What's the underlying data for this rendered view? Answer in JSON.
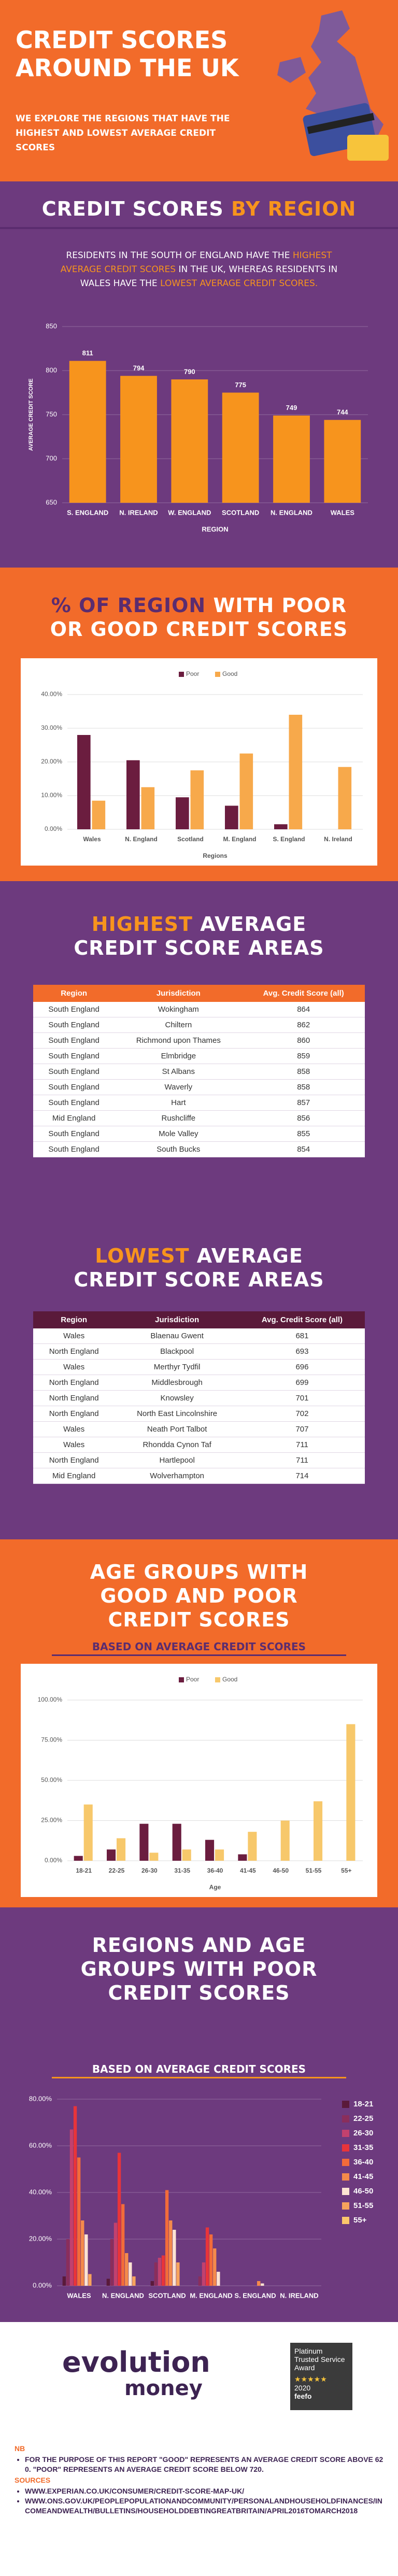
{
  "header": {
    "title": [
      "CREDIT SCORES",
      "AROUND THE UK"
    ],
    "subtitle": "WE EXPLORE THE REGIONS THAT HAVE THE HIGHEST AND LOWEST AVERAGE CREDIT SCORES"
  },
  "chart_data": [
    {
      "type": "bar",
      "title": [
        "CREDIT SCORES",
        "BY REGION"
      ],
      "description": [
        "RESIDENTS IN THE SOUTH OF ENGLAND HAVE THE",
        "HIGHEST AVERAGE CREDIT SCORES",
        "IN THE UK, WHEREAS RESIDENTS IN WALES HAVE THE",
        "LOWEST AVERAGE CREDIT SCORES."
      ],
      "categories": [
        "S. ENGLAND",
        "N. IRELAND",
        "W. ENGLAND",
        "SCOTLAND",
        "N. ENGLAND",
        "WALES"
      ],
      "values": [
        811,
        794,
        790,
        775,
        749,
        744
      ],
      "color": "#f7941d",
      "ylim": [
        650,
        850
      ],
      "yticks": [
        650,
        700,
        750,
        800,
        850
      ],
      "grid": true,
      "y_label": "AVERAGE CREDIT SCORE",
      "x_label": "REGION"
    },
    {
      "type": "grouped_bar",
      "title": [
        "% OF REGION",
        "WITH POOR OR GOOD CREDIT SCORES"
      ],
      "categories": [
        "Wales",
        "N. England",
        "Scotland",
        "M. England",
        "S. England",
        "N. Ireland"
      ],
      "series": [
        {
          "name": "Poor",
          "color": "#6b1d3f",
          "values": [
            28,
            20.5,
            9.5,
            7,
            1.5,
            0
          ]
        },
        {
          "name": "Good",
          "color": "#f7a94b",
          "values": [
            8.5,
            12.5,
            17.5,
            22.5,
            34,
            18.5
          ]
        }
      ],
      "ylim": [
        0,
        40
      ],
      "yticks": [
        {
          "value": 0,
          "label": "0.00%"
        },
        {
          "value": 10,
          "label": "10.00%"
        },
        {
          "value": 20,
          "label": "20.00%"
        },
        {
          "value": 30,
          "label": "30.00%"
        },
        {
          "value": 40,
          "label": "40.00%"
        }
      ],
      "grid": true,
      "legend": "top",
      "x_label": "Regions"
    },
    {
      "type": "grouped_bar",
      "title": [
        "AGE GROUPS WITH GOOD AND POOR CREDIT SCORES"
      ],
      "subtitle": "BASED ON AVERAGE CREDIT SCORES",
      "categories": [
        "18-21",
        "22-25",
        "26-30",
        "31-35",
        "36-40",
        "41-45",
        "46-50",
        "51-55",
        "55+"
      ],
      "series": [
        {
          "name": "Poor",
          "color": "#6b1d3f",
          "values": [
            3,
            7,
            23,
            23,
            13,
            4,
            0,
            0,
            0
          ]
        },
        {
          "name": "Good",
          "color": "#f7c86b",
          "values": [
            35,
            14,
            5,
            7,
            7,
            18,
            25,
            37,
            85
          ]
        }
      ],
      "ylim": [
        0,
        100
      ],
      "yticks": [
        {
          "value": 0,
          "label": "0.00%"
        },
        {
          "value": 25,
          "label": "25.00%"
        },
        {
          "value": 50,
          "label": "50.00%"
        },
        {
          "value": 75,
          "label": "75.00%"
        },
        {
          "value": 100,
          "label": "100.00%"
        }
      ],
      "grid": true,
      "legend": "top",
      "x_label": "Age"
    },
    {
      "type": "grouped_bar",
      "title": [
        "REGIONS AND AGE GROUPS WITH POOR CREDIT SCORES"
      ],
      "subtitle": "BASED ON AVERAGE CREDIT SCORES",
      "categories": [
        "WALES",
        "N. ENGLAND",
        "SCOTLAND",
        "M. ENGLAND",
        "S. ENGLAND",
        "N. IRELAND"
      ],
      "series": [
        {
          "name": "18-21",
          "color": "#5a1a3a",
          "values": [
            4,
            3,
            2,
            0,
            0,
            0
          ]
        },
        {
          "name": "22-25",
          "color": "#8a2e5c",
          "values": [
            20,
            20,
            10,
            4,
            0,
            0
          ]
        },
        {
          "name": "26-30",
          "color": "#c2416e",
          "values": [
            67,
            27,
            12,
            10,
            0,
            0
          ]
        },
        {
          "name": "31-35",
          "color": "#e8343a",
          "values": [
            77,
            57,
            13,
            25,
            0,
            0
          ]
        },
        {
          "name": "36-40",
          "color": "#f26b3a",
          "values": [
            55,
            35,
            41,
            22,
            0,
            0
          ]
        },
        {
          "name": "41-45",
          "color": "#f58a4b",
          "values": [
            28,
            14,
            28,
            16,
            2,
            0
          ]
        },
        {
          "name": "46-50",
          "color": "#fde3d2",
          "values": [
            22,
            10,
            24,
            6,
            1,
            0
          ]
        },
        {
          "name": "51-55",
          "color": "#f7a35c",
          "values": [
            5,
            4,
            10,
            0,
            0,
            0
          ]
        },
        {
          "name": "55+",
          "color": "#fbc66b",
          "values": [
            0,
            0,
            0,
            0,
            0,
            0
          ]
        }
      ],
      "ylim": [
        0,
        80
      ],
      "yticks": [
        {
          "value": 0,
          "label": "0.00%"
        },
        {
          "value": 20,
          "label": "20.00%"
        },
        {
          "value": 40,
          "label": "40.00%"
        },
        {
          "value": 60,
          "label": "60.00%"
        },
        {
          "value": 80,
          "label": "80.00%"
        }
      ],
      "grid": true,
      "legend": "right"
    }
  ],
  "tables": [
    {
      "title": [
        "HIGHEST",
        "AVERAGE CREDIT SCORE AREAS"
      ],
      "columns": [
        "Region",
        "Jurisdiction",
        "Avg. Credit Score (all)"
      ],
      "rows": [
        [
          "South England",
          "Wokingham",
          864
        ],
        [
          "South England",
          "Chiltern",
          862
        ],
        [
          "South England",
          "Richmond upon Thames",
          860
        ],
        [
          "South England",
          "Elmbridge",
          859
        ],
        [
          "South England",
          "St Albans",
          858
        ],
        [
          "South England",
          "Waverly",
          858
        ],
        [
          "South England",
          "Hart",
          857
        ],
        [
          "Mid England",
          "Rushcliffe",
          856
        ],
        [
          "South England",
          "Mole Valley",
          855
        ],
        [
          "South England",
          "South Bucks",
          854
        ]
      ]
    },
    {
      "title": [
        "LOWEST",
        "AVERAGE CREDIT SCORE AREAS"
      ],
      "columns": [
        "Region",
        "Jurisdiction",
        "Avg. Credit Score (all)"
      ],
      "rows": [
        [
          "Wales",
          "Blaenau Gwent",
          681
        ],
        [
          "North England",
          "Blackpool",
          693
        ],
        [
          "Wales",
          "Merthyr Tydfil",
          696
        ],
        [
          "North England",
          "Middlesbrough",
          699
        ],
        [
          "North England",
          "Knowsley",
          701
        ],
        [
          "North England",
          "North East Lincolnshire",
          702
        ],
        [
          "Wales",
          "Neath Port Talbot",
          707
        ],
        [
          "Wales",
          "Rhondda Cynon Taf",
          711
        ],
        [
          "North England",
          "Hartlepool",
          711
        ],
        [
          "Mid England",
          "Wolverhampton",
          714
        ]
      ]
    }
  ],
  "footer": {
    "logo": [
      "evolution",
      "money"
    ],
    "badge": [
      "Platinum Trusted Service Award",
      "2020",
      "feefo"
    ],
    "nb_label": "NB",
    "nb": "FOR THE PURPOSE OF THIS REPORT \"GOOD\" REPRESENTS AN AVERAGE CREDIT SCORE ABOVE 620. \"POOR\" REPRESENTS AN AVERAGE CREDIT SCORE BELOW 720.",
    "sources_label": "SOURCES",
    "sources": [
      "WWW.EXPERIAN.CO.UK/CONSUMER/CREDIT-SCORE-MAP-UK/",
      "WWW.ONS.GOV.UK/PEOPLEPOPULATIONANDCOMMUNITY/PERSONALANDHOUSEHOLDFINANCES/INCOMEANDWEALTH/BULLETINS/HOUSEHOLDDEBTINGREATBRITAIN/APRIL2016TOMARCH2018"
    ]
  }
}
